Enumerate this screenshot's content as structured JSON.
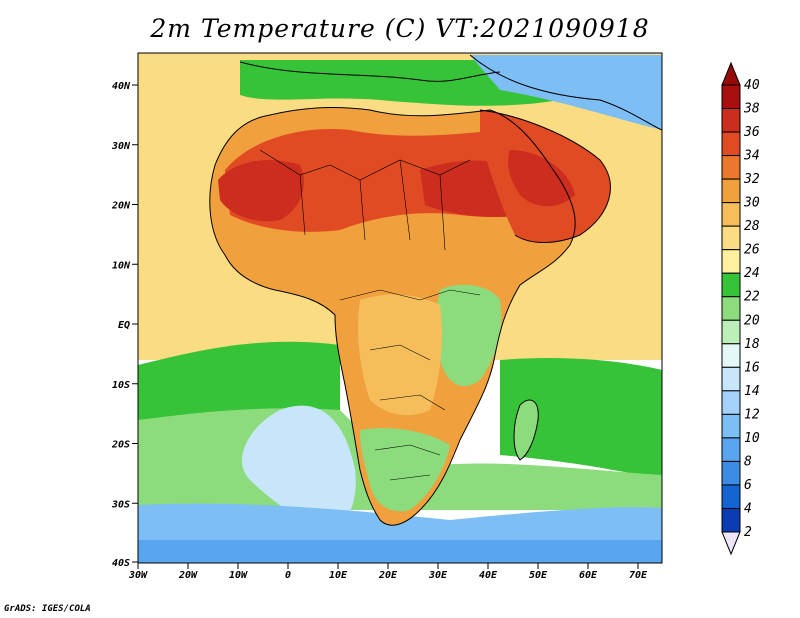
{
  "title": "2m Temperature (C) VT:2021090918",
  "credit": "GrADS: IGES/COLA",
  "lat_ticks": [
    "40N",
    "30N",
    "20N",
    "10N",
    "EQ",
    "10S",
    "20S",
    "30S",
    "40S"
  ],
  "lon_ticks": [
    "30W",
    "20W",
    "10W",
    "0",
    "10E",
    "20E",
    "30E",
    "40E",
    "50E",
    "60E",
    "70E"
  ],
  "colorbar": {
    "levels": [
      "2",
      "4",
      "6",
      "8",
      "10",
      "12",
      "14",
      "16",
      "18",
      "20",
      "22",
      "24",
      "26",
      "28",
      "30",
      "32",
      "34",
      "36",
      "38",
      "40"
    ],
    "colors": [
      "#141478",
      "#0a3cb4",
      "#1464d2",
      "#3c8ce6",
      "#5aa5f0",
      "#7dbef5",
      "#a5d2fa",
      "#c8e6fa",
      "#e6f7f7",
      "#bdefb9",
      "#8cdc7d",
      "#37c337",
      "#fff0a0",
      "#fadc82",
      "#f5be5a",
      "#f0a03c",
      "#eb782d",
      "#e14b23",
      "#cd2d1e",
      "#aa0f0f"
    ],
    "below_color": "#f0e6fa",
    "above_color": "#960a0a"
  },
  "field_colors": {
    "ocean_north": "#fadc82",
    "ocean_tropical": "#fadc82",
    "ocean_south_warm": "#37c337",
    "ocean_south_mild": "#8cdc7d",
    "ocean_south_cool": "#c8e6fa",
    "ocean_south_cold": "#7dbef5",
    "ocean_far_south": "#5aa5f0",
    "land_hot": "#e14b23",
    "land_very_hot": "#cd2d1e",
    "land_warm": "#f0a03c",
    "land_mild": "#f5be5a",
    "land_cool": "#8cdc7d",
    "mediterranean": "#37c337",
    "high_terrain": "#7dbef5"
  }
}
